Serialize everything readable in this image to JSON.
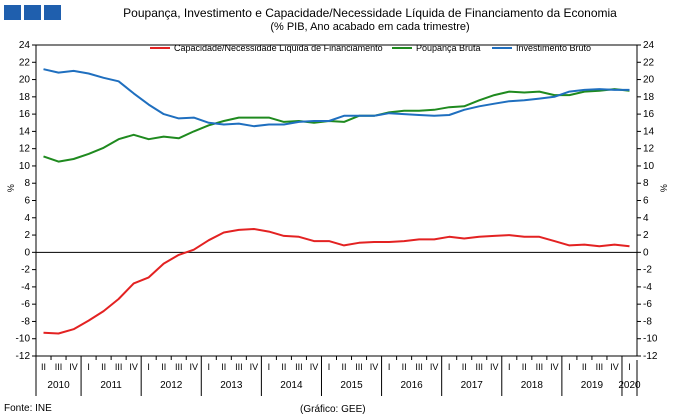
{
  "header": {
    "title": "Poupança, Investimento e Capacidade/Necessidade Líquida de Financiamento da Economia",
    "subtitle": "(% PIB, Ano acabado em cada trimestre)"
  },
  "footer": {
    "source": "Fonte: INE",
    "credit": "(Gráfico: GEE)"
  },
  "colors": {
    "capacidade": "#e32222",
    "poupanca": "#1f8a1f",
    "investimento": "#1f6fbf",
    "logo": "#1f5fae"
  },
  "chart_data": {
    "type": "line",
    "ylabel": "%",
    "ylabel_right": "%",
    "ylim": [
      -12,
      24
    ],
    "yticks": [
      24,
      22,
      20,
      18,
      16,
      14,
      12,
      10,
      8,
      6,
      4,
      2,
      0,
      -2,
      -4,
      -6,
      -8,
      -10,
      -12
    ],
    "quarter_labels": [
      "II",
      "III",
      "IV",
      "I",
      "II",
      "III",
      "IV",
      "I",
      "II",
      "III",
      "IV",
      "I",
      "II",
      "III",
      "IV",
      "I",
      "II",
      "III",
      "IV",
      "I",
      "II",
      "III",
      "IV",
      "I",
      "II",
      "III",
      "IV",
      "I",
      "II",
      "III",
      "IV",
      "I",
      "II",
      "III",
      "IV",
      "I",
      "II",
      "III",
      "IV",
      "I"
    ],
    "years": [
      {
        "label": "2010",
        "quarters": 3
      },
      {
        "label": "2011",
        "quarters": 4
      },
      {
        "label": "2012",
        "quarters": 4
      },
      {
        "label": "2013",
        "quarters": 4
      },
      {
        "label": "2014",
        "quarters": 4
      },
      {
        "label": "2015",
        "quarters": 4
      },
      {
        "label": "2016",
        "quarters": 4
      },
      {
        "label": "2017",
        "quarters": 4
      },
      {
        "label": "2018",
        "quarters": 4
      },
      {
        "label": "2019",
        "quarters": 4
      },
      {
        "label": "2020",
        "quarters": 1
      }
    ],
    "legend_position": "top-center",
    "series": [
      {
        "name": "Capacidade/Necessidade Líquida de Financiamento",
        "color": "#e32222",
        "values": [
          -9.3,
          -9.4,
          -8.9,
          -7.9,
          -6.8,
          -5.4,
          -3.6,
          -2.9,
          -1.3,
          -0.3,
          0.3,
          1.4,
          2.3,
          2.6,
          2.7,
          2.4,
          1.9,
          1.8,
          1.3,
          1.3,
          0.8,
          1.1,
          1.2,
          1.2,
          1.3,
          1.5,
          1.5,
          1.8,
          1.6,
          1.8,
          1.9,
          2.0,
          1.8,
          1.8,
          1.3,
          0.8,
          0.9,
          0.7,
          0.9,
          0.7
        ]
      },
      {
        "name": "Poupança Bruta",
        "color": "#1f8a1f",
        "values": [
          11.1,
          10.5,
          10.8,
          11.4,
          12.1,
          13.1,
          13.6,
          13.1,
          13.4,
          13.2,
          14.0,
          14.7,
          15.2,
          15.6,
          15.6,
          15.6,
          15.1,
          15.2,
          15.0,
          15.2,
          15.1,
          15.8,
          15.8,
          16.2,
          16.4,
          16.4,
          16.5,
          16.8,
          16.9,
          17.6,
          18.2,
          18.6,
          18.5,
          18.6,
          18.2,
          18.2,
          18.6,
          18.7,
          18.9,
          18.7
        ]
      },
      {
        "name": "Investimento Bruto",
        "color": "#1f6fbf",
        "values": [
          21.2,
          20.8,
          21.0,
          20.7,
          20.2,
          19.8,
          18.4,
          17.1,
          16.0,
          15.5,
          15.6,
          15.0,
          14.8,
          14.9,
          14.6,
          14.8,
          14.8,
          15.1,
          15.2,
          15.2,
          15.8,
          15.8,
          15.8,
          16.1,
          16.0,
          15.9,
          15.8,
          15.9,
          16.5,
          16.9,
          17.2,
          17.5,
          17.6,
          17.8,
          18.0,
          18.6,
          18.8,
          18.9,
          18.8,
          18.8
        ]
      }
    ]
  }
}
